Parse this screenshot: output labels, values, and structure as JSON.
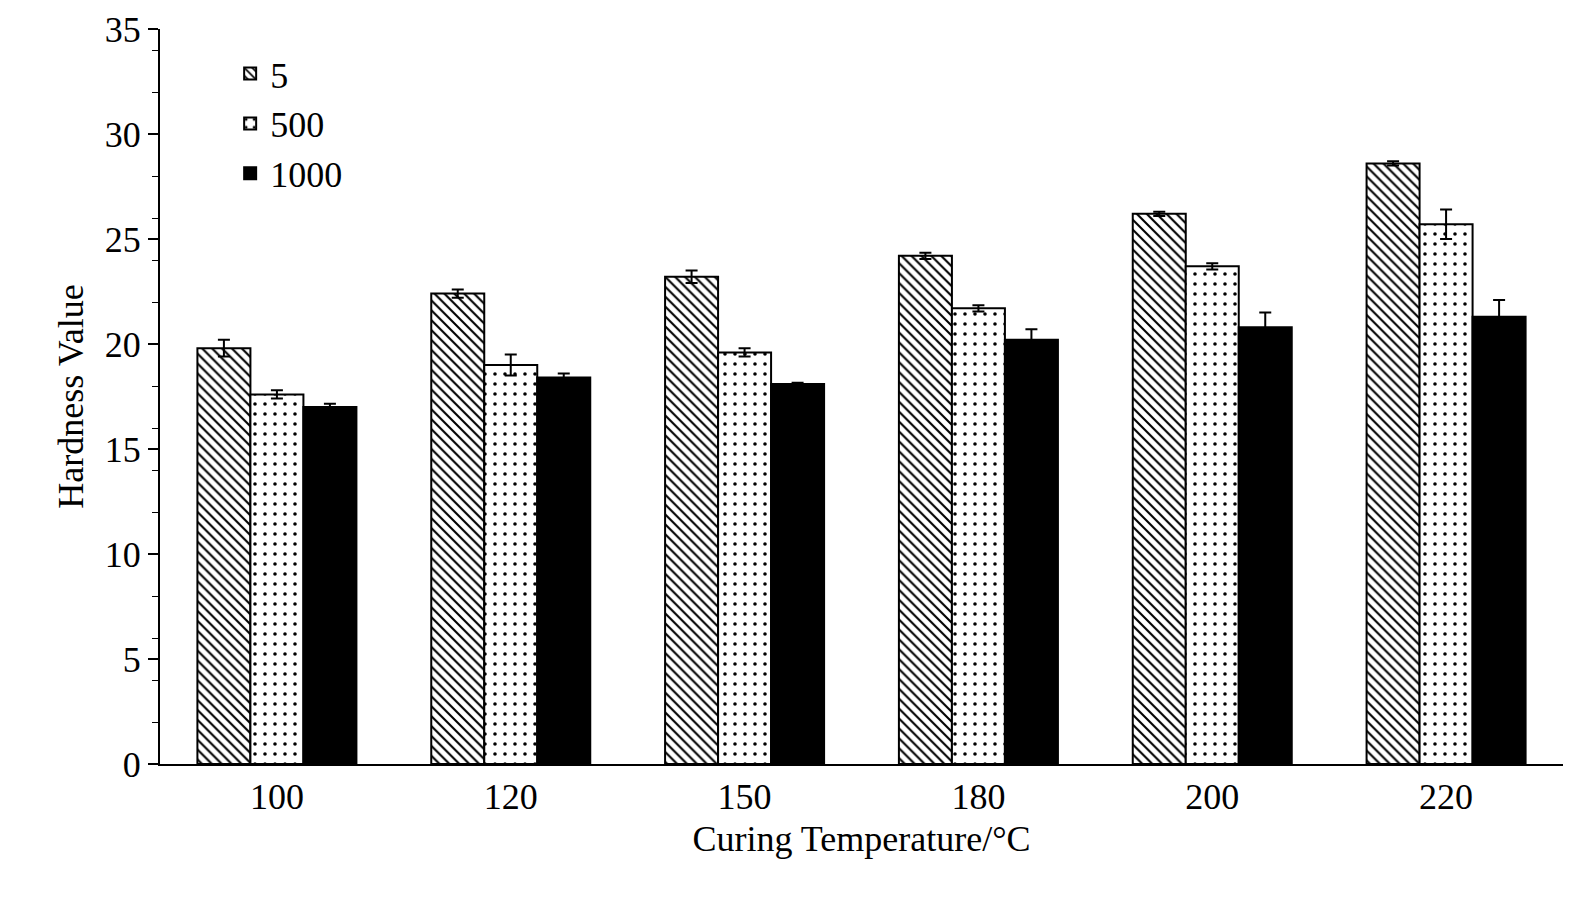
{
  "chart_data": {
    "type": "bar",
    "x_label": "Curing Temperature/°C",
    "y_label": "Hardness Value",
    "categories": [
      "100",
      "120",
      "150",
      "180",
      "200",
      "220"
    ],
    "series": [
      {
        "name": "5",
        "color": "#000000",
        "marker": "backslash",
        "values": [
          19.8,
          22.4,
          23.2,
          24.2,
          26.2,
          28.6
        ],
        "errors": [
          0.4,
          0.2,
          0.3,
          0.15,
          0.1,
          0.1
        ]
      },
      {
        "name": "500",
        "color": "#000000",
        "marker": "dot",
        "values": [
          17.6,
          19.0,
          19.6,
          21.7,
          23.7,
          25.7
        ],
        "errors": [
          0.2,
          0.5,
          0.2,
          0.15,
          0.15,
          0.7
        ]
      },
      {
        "name": "1000",
        "color": "#000000",
        "marker": "solid",
        "values": [
          17.0,
          18.4,
          18.1,
          20.2,
          20.8,
          21.3
        ],
        "errors": [
          0.15,
          0.2,
          0.05,
          0.5,
          0.7,
          0.8
        ]
      }
    ],
    "ylim": [
      0,
      35
    ],
    "yticks": [
      0,
      5,
      10,
      15,
      20,
      25,
      30,
      35
    ],
    "grid": false,
    "legend": "upper left"
  }
}
